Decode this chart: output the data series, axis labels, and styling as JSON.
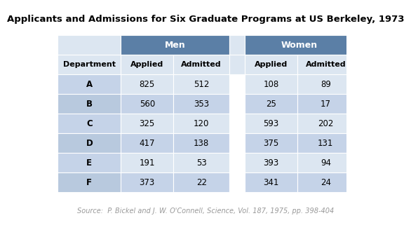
{
  "title": "Applicants and Admissions for Six Graduate Programs at US Berkeley, 1973",
  "source": "Source:  P. Bickel and J. W. O'Connell, Science, Vol. 187, 1975, pp. 398-404",
  "departments": [
    "A",
    "B",
    "C",
    "D",
    "E",
    "F"
  ],
  "men_applied": [
    825,
    560,
    325,
    417,
    191,
    373
  ],
  "men_admitted": [
    512,
    353,
    120,
    138,
    53,
    22
  ],
  "women_applied": [
    108,
    25,
    593,
    375,
    393,
    341
  ],
  "women_admitted": [
    89,
    17,
    202,
    131,
    94,
    24
  ],
  "header_bg_color": "#5b7fa6",
  "header_text_color": "#ffffff",
  "subheader_bg_color": "#dce6f1",
  "row_colors": [
    "#dce6f1",
    "#c5d3e8"
  ],
  "dept_col_colors": [
    "#c5d3e8",
    "#b8c9de"
  ],
  "title_fontsize": 9.5,
  "source_fontsize": 7.0
}
